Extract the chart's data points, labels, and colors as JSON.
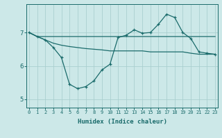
{
  "xlabel": "Humidex (Indice chaleur)",
  "background_color": "#cce8e8",
  "line_color": "#1a6b6b",
  "grid_color": "#aacfcf",
  "x_values": [
    0,
    1,
    2,
    3,
    4,
    5,
    6,
    7,
    8,
    9,
    10,
    11,
    12,
    13,
    14,
    15,
    16,
    17,
    18,
    19,
    20,
    21,
    22,
    23
  ],
  "line1_y": [
    7.0,
    6.88,
    6.88,
    6.88,
    6.88,
    6.88,
    6.88,
    6.88,
    6.88,
    6.88,
    6.88,
    6.88,
    6.88,
    6.88,
    6.88,
    6.88,
    6.88,
    6.88,
    6.88,
    6.88,
    6.88,
    6.88,
    6.88,
    6.88
  ],
  "line2_y": [
    7.0,
    6.88,
    6.78,
    6.68,
    6.62,
    6.58,
    6.55,
    6.52,
    6.5,
    6.48,
    6.45,
    6.45,
    6.45,
    6.45,
    6.45,
    6.42,
    6.42,
    6.42,
    6.42,
    6.42,
    6.38,
    6.35,
    6.35,
    6.35
  ],
  "line3_y": [
    7.0,
    6.88,
    6.78,
    6.55,
    6.25,
    5.45,
    5.32,
    5.38,
    5.55,
    5.88,
    6.05,
    6.85,
    6.92,
    7.08,
    6.98,
    7.0,
    7.25,
    7.55,
    7.45,
    7.0,
    6.82,
    6.42,
    6.38,
    6.35
  ],
  "ylim": [
    4.75,
    7.85
  ],
  "yticks": [
    5,
    6,
    7
  ],
  "xticks": [
    0,
    1,
    2,
    3,
    4,
    5,
    6,
    7,
    8,
    9,
    10,
    11,
    12,
    13,
    14,
    15,
    16,
    17,
    18,
    19,
    20,
    21,
    22,
    23
  ]
}
